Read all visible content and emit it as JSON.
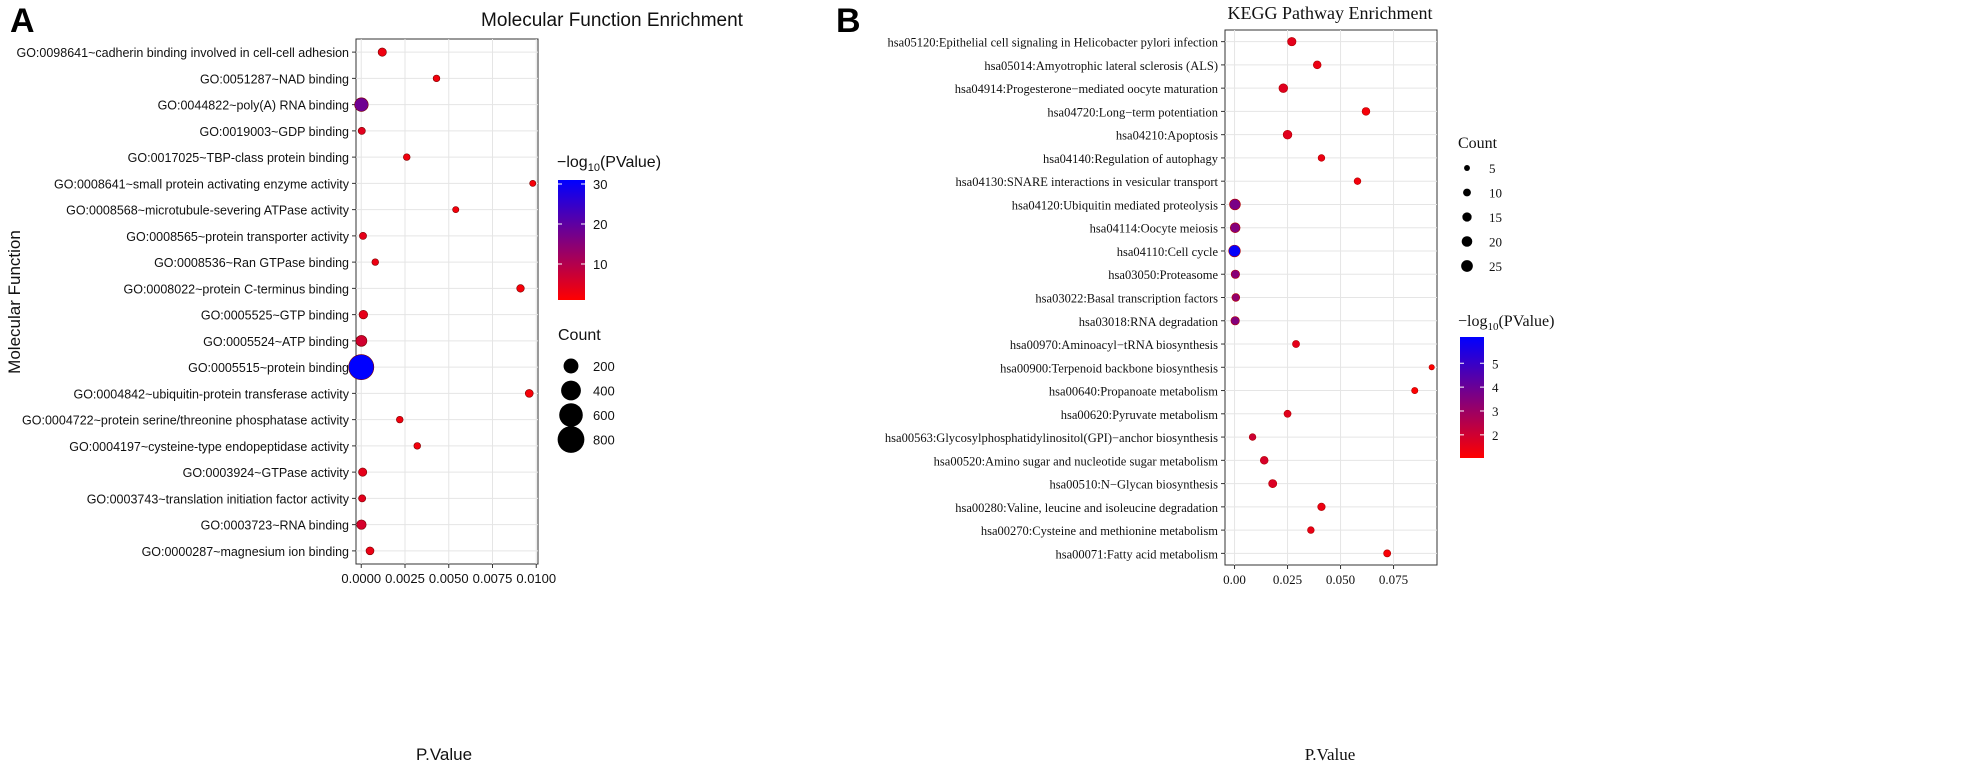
{
  "figure": {
    "panel_a_letter": "A",
    "panel_b_letter": "B"
  },
  "chart_data": [
    {
      "type": "scatter",
      "title": "Molecular Function Enrichment",
      "xlabel": "P.Value",
      "ylabel": "Molecular Function",
      "xlim": [
        -0.0003,
        0.0101
      ],
      "x_ticks": [
        {
          "value": 0,
          "label": "0.0000"
        },
        {
          "value": 0.0025,
          "label": "0.0025"
        },
        {
          "value": 0.005,
          "label": "0.0050"
        },
        {
          "value": 0.0075,
          "label": "0.0075"
        },
        {
          "value": 0.01,
          "label": "0.0100"
        }
      ],
      "grid": true,
      "color_legend": {
        "title_prefix": "−log",
        "title_sub": "10",
        "title_suffix": "(PValue)",
        "range": [
          1,
          31
        ],
        "ticks": [
          10,
          20,
          30
        ],
        "low_color": "#ff0000",
        "high_color": "#0000ff"
      },
      "size_legend": {
        "title": "Count",
        "values": [
          200,
          400,
          600,
          800
        ]
      },
      "legend_position": "right",
      "points": [
        {
          "term": "GO:0098641~cadherin binding involved in cell-cell adhesion",
          "p": 0.0012,
          "count": 40,
          "neglog10p": 2.9
        },
        {
          "term": "GO:0051287~NAD binding",
          "p": 0.0043,
          "count": 20,
          "neglog10p": 2.4
        },
        {
          "term": "GO:0044822~poly(A) RNA binding",
          "p": 1e-05,
          "count": 160,
          "neglog10p": 18
        },
        {
          "term": "GO:0019003~GDP binding",
          "p": 3e-05,
          "count": 25,
          "neglog10p": 4.5
        },
        {
          "term": "GO:0017025~TBP-class protein binding",
          "p": 0.0026,
          "count": 20,
          "neglog10p": 2.6
        },
        {
          "term": "GO:0008641~small protein activating enzyme activity",
          "p": 0.0098,
          "count": 15,
          "neglog10p": 2.0
        },
        {
          "term": "GO:0008568~microtubule-severing ATPase activity",
          "p": 0.0054,
          "count": 15,
          "neglog10p": 2.3
        },
        {
          "term": "GO:0008565~protein transporter activity",
          "p": 0.0001,
          "count": 25,
          "neglog10p": 4.0
        },
        {
          "term": "GO:0008536~Ran GTPase binding",
          "p": 0.0008,
          "count": 20,
          "neglog10p": 3.1
        },
        {
          "term": "GO:0008022~protein C-terminus binding",
          "p": 0.0091,
          "count": 30,
          "neglog10p": 2.0
        },
        {
          "term": "GO:0005525~GTP binding",
          "p": 0.00012,
          "count": 45,
          "neglog10p": 3.9
        },
        {
          "term": "GO:0005524~ATP binding",
          "p": 1e-05,
          "count": 90,
          "neglog10p": 6.5
        },
        {
          "term": "GO:0005515~protein binding",
          "p": 0.0,
          "count": 700,
          "neglog10p": 31
        },
        {
          "term": "GO:0004842~ubiquitin-protein transferase activity",
          "p": 0.0096,
          "count": 35,
          "neglog10p": 2.0
        },
        {
          "term": "GO:0004722~protein serine/threonine phosphatase activity",
          "p": 0.0022,
          "count": 20,
          "neglog10p": 2.7
        },
        {
          "term": "GO:0004197~cysteine-type endopeptidase activity",
          "p": 0.0032,
          "count": 20,
          "neglog10p": 2.5
        },
        {
          "term": "GO:0003924~GTPase activity",
          "p": 8e-05,
          "count": 40,
          "neglog10p": 4.1
        },
        {
          "term": "GO:0003743~translation initiation factor activity",
          "p": 5e-05,
          "count": 25,
          "neglog10p": 4.3
        },
        {
          "term": "GO:0003723~RNA binding",
          "p": 1e-05,
          "count": 60,
          "neglog10p": 6.0
        },
        {
          "term": "GO:0000287~magnesium ion binding",
          "p": 0.0005,
          "count": 35,
          "neglog10p": 3.3
        }
      ]
    },
    {
      "type": "scatter",
      "title": "KEGG Pathway Enrichment",
      "xlabel": "P.Value",
      "ylabel": "",
      "xlim": [
        -0.0045,
        0.0955
      ],
      "x_ticks": [
        {
          "value": 0,
          "label": "0.00"
        },
        {
          "value": 0.025,
          "label": "0.025"
        },
        {
          "value": 0.05,
          "label": "0.050"
        },
        {
          "value": 0.075,
          "label": "0.075"
        }
      ],
      "grid": true,
      "size_legend": {
        "title": "Count",
        "values": [
          5,
          10,
          15,
          20,
          25
        ]
      },
      "color_legend": {
        "title_prefix": "−log",
        "title_sub": "10",
        "title_suffix": "(PValue)",
        "range": [
          1.03,
          6.1
        ],
        "ticks": [
          2,
          3,
          4,
          5
        ],
        "low_color": "#ff0000",
        "high_color": "#0000ff"
      },
      "legend_position": "right",
      "points": [
        {
          "term": "hsa05120:Epithelial cell signaling in Helicobacter pylori infection",
          "p": 0.027,
          "count": 12,
          "neglog10p": 1.57
        },
        {
          "term": "hsa05014:Amyotrophic lateral sclerosis (ALS)",
          "p": 0.039,
          "count": 10,
          "neglog10p": 1.41
        },
        {
          "term": "hsa04914:Progesterone−mediated oocyte maturation",
          "p": 0.023,
          "count": 13,
          "neglog10p": 1.64
        },
        {
          "term": "hsa04720:Long−term potentiation",
          "p": 0.062,
          "count": 10,
          "neglog10p": 1.21
        },
        {
          "term": "hsa04210:Apoptosis",
          "p": 0.025,
          "count": 13,
          "neglog10p": 1.6
        },
        {
          "term": "hsa04140:Regulation of autophagy",
          "p": 0.041,
          "count": 7,
          "neglog10p": 1.39
        },
        {
          "term": "hsa04130:SNARE interactions in vesicular transport",
          "p": 0.058,
          "count": 7,
          "neglog10p": 1.24
        },
        {
          "term": "hsa04120:Ubiquitin mediated proteolysis",
          "p": 0.0002,
          "count": 21,
          "neglog10p": 3.7
        },
        {
          "term": "hsa04114:Oocyte meiosis",
          "p": 0.0003,
          "count": 17,
          "neglog10p": 3.5
        },
        {
          "term": "hsa04110:Cell cycle",
          "p": 1e-06,
          "count": 25,
          "neglog10p": 6.0
        },
        {
          "term": "hsa03050:Proteasome",
          "p": 0.0004,
          "count": 12,
          "neglog10p": 3.4
        },
        {
          "term": "hsa03022:Basal transcription factors",
          "p": 0.0006,
          "count": 10,
          "neglog10p": 3.2
        },
        {
          "term": "hsa03018:RNA degradation",
          "p": 0.0003,
          "count": 12,
          "neglog10p": 3.5
        },
        {
          "term": "hsa00970:Aminoacyl−tRNA biosynthesis",
          "p": 0.029,
          "count": 8,
          "neglog10p": 1.54
        },
        {
          "term": "hsa00900:Terpenoid backbone biosynthesis",
          "p": 0.093,
          "count": 4,
          "neglog10p": 1.03
        },
        {
          "term": "hsa00640:Propanoate metabolism",
          "p": 0.085,
          "count": 6,
          "neglog10p": 1.07
        },
        {
          "term": "hsa00620:Pyruvate metabolism",
          "p": 0.025,
          "count": 8,
          "neglog10p": 1.6
        },
        {
          "term": "hsa00563:Glycosylphosphatidylinositol(GPI)−anchor biosynthesis",
          "p": 0.0085,
          "count": 7,
          "neglog10p": 2.07
        },
        {
          "term": "hsa00520:Amino sugar and nucleotide sugar metabolism",
          "p": 0.014,
          "count": 10,
          "neglog10p": 1.85
        },
        {
          "term": "hsa00510:N−Glycan biosynthesis",
          "p": 0.018,
          "count": 11,
          "neglog10p": 1.74
        },
        {
          "term": "hsa00280:Valine, leucine and isoleucine degradation",
          "p": 0.041,
          "count": 9,
          "neglog10p": 1.39
        },
        {
          "term": "hsa00270:Cysteine and methionine metabolism",
          "p": 0.036,
          "count": 7,
          "neglog10p": 1.44
        },
        {
          "term": "hsa00071:Fatty acid metabolism",
          "p": 0.072,
          "count": 8,
          "neglog10p": 1.14
        }
      ]
    }
  ]
}
